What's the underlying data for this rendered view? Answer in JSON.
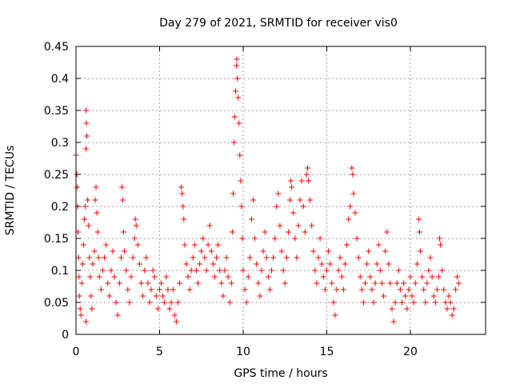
{
  "chart_data": {
    "type": "scatter",
    "title": "Day 279 of 2021, SRMTID for receiver vis0",
    "xlabel": "GPS time / hours",
    "ylabel": "SRMTID / TECUs",
    "xlim": [
      0,
      24.5
    ],
    "ylim": [
      0,
      0.45
    ],
    "grid": true,
    "marker": "+",
    "color": "#ff0000",
    "xticks": [
      {
        "value": 0,
        "label": "0"
      },
      {
        "value": 5,
        "label": "5"
      },
      {
        "value": 10,
        "label": "10"
      },
      {
        "value": 15,
        "label": "15"
      },
      {
        "value": 20,
        "label": "20"
      }
    ],
    "yticks": [
      {
        "value": 0,
        "label": "0"
      },
      {
        "value": 0.05,
        "label": "0.05"
      },
      {
        "value": 0.1,
        "label": "0.1"
      },
      {
        "value": 0.15,
        "label": "0.15"
      },
      {
        "value": 0.2,
        "label": "0.2"
      },
      {
        "value": 0.25,
        "label": "0.25"
      },
      {
        "value": 0.3,
        "label": "0.3"
      },
      {
        "value": 0.35,
        "label": "0.35"
      },
      {
        "value": 0.4,
        "label": "0.4"
      },
      {
        "value": 0.45,
        "label": "0.45"
      }
    ],
    "series": [
      {
        "name": "vis0",
        "points": [
          [
            0.0,
            0.28
          ],
          [
            0.05,
            0.25
          ],
          [
            0.08,
            0.23
          ],
          [
            0.1,
            0.2
          ],
          [
            0.12,
            0.16
          ],
          [
            0.15,
            0.12
          ],
          [
            0.18,
            0.09
          ],
          [
            0.2,
            0.06
          ],
          [
            0.25,
            0.04
          ],
          [
            0.3,
            0.03
          ],
          [
            0.35,
            0.08
          ],
          [
            0.4,
            0.11
          ],
          [
            0.45,
            0.14
          ],
          [
            0.5,
            0.18
          ],
          [
            0.55,
            0.2
          ],
          [
            0.6,
            0.35
          ],
          [
            0.62,
            0.33
          ],
          [
            0.65,
            0.31
          ],
          [
            0.6,
            0.29
          ],
          [
            0.7,
            0.21
          ],
          [
            0.75,
            0.17
          ],
          [
            0.8,
            0.12
          ],
          [
            0.85,
            0.09
          ],
          [
            0.9,
            0.06
          ],
          [
            0.95,
            0.04
          ],
          [
            0.6,
            0.02
          ],
          [
            1.0,
            0.11
          ],
          [
            1.1,
            0.13
          ],
          [
            1.15,
            0.21
          ],
          [
            1.2,
            0.23
          ],
          [
            1.25,
            0.19
          ],
          [
            1.3,
            0.16
          ],
          [
            1.35,
            0.12
          ],
          [
            1.4,
            0.09
          ],
          [
            1.5,
            0.07
          ],
          [
            1.6,
            0.1
          ],
          [
            1.7,
            0.12
          ],
          [
            1.8,
            0.14
          ],
          [
            1.9,
            0.08
          ],
          [
            2.0,
            0.06
          ],
          [
            2.1,
            0.1
          ],
          [
            2.2,
            0.13
          ],
          [
            2.3,
            0.09
          ],
          [
            2.4,
            0.05
          ],
          [
            2.5,
            0.03
          ],
          [
            2.6,
            0.08
          ],
          [
            2.7,
            0.12
          ],
          [
            2.75,
            0.23
          ],
          [
            2.8,
            0.21
          ],
          [
            2.85,
            0.16
          ],
          [
            2.9,
            0.13
          ],
          [
            3.0,
            0.1
          ],
          [
            3.1,
            0.07
          ],
          [
            3.2,
            0.05
          ],
          [
            3.3,
            0.09
          ],
          [
            3.4,
            0.12
          ],
          [
            3.5,
            0.15
          ],
          [
            3.55,
            0.18
          ],
          [
            3.6,
            0.17
          ],
          [
            3.7,
            0.14
          ],
          [
            3.8,
            0.11
          ],
          [
            3.9,
            0.08
          ],
          [
            4.0,
            0.06
          ],
          [
            4.1,
            0.1
          ],
          [
            4.2,
            0.12
          ],
          [
            4.3,
            0.08
          ],
          [
            4.4,
            0.05
          ],
          [
            4.5,
            0.07
          ],
          [
            4.6,
            0.1
          ],
          [
            4.7,
            0.09
          ],
          [
            4.8,
            0.06
          ],
          [
            4.9,
            0.04
          ],
          [
            5.0,
            0.07
          ],
          [
            5.1,
            0.08
          ],
          [
            5.2,
            0.06
          ],
          [
            5.3,
            0.05
          ],
          [
            5.4,
            0.09
          ],
          [
            5.5,
            0.07
          ],
          [
            5.6,
            0.04
          ],
          [
            5.7,
            0.05
          ],
          [
            5.8,
            0.07
          ],
          [
            5.9,
            0.03
          ],
          [
            6.0,
            0.02
          ],
          [
            6.1,
            0.05
          ],
          [
            6.2,
            0.08
          ],
          [
            6.3,
            0.23
          ],
          [
            6.35,
            0.22
          ],
          [
            6.4,
            0.2
          ],
          [
            6.45,
            0.18
          ],
          [
            6.5,
            0.14
          ],
          [
            6.6,
            0.11
          ],
          [
            6.7,
            0.09
          ],
          [
            6.8,
            0.07
          ],
          [
            6.9,
            0.1
          ],
          [
            7.0,
            0.12
          ],
          [
            7.1,
            0.14
          ],
          [
            7.2,
            0.1
          ],
          [
            7.3,
            0.08
          ],
          [
            7.4,
            0.11
          ],
          [
            7.5,
            0.13
          ],
          [
            7.6,
            0.15
          ],
          [
            7.7,
            0.12
          ],
          [
            7.8,
            0.1
          ],
          [
            7.9,
            0.14
          ],
          [
            8.0,
            0.17
          ],
          [
            8.1,
            0.13
          ],
          [
            8.2,
            0.11
          ],
          [
            8.3,
            0.09
          ],
          [
            8.4,
            0.12
          ],
          [
            8.5,
            0.14
          ],
          [
            8.6,
            0.1
          ],
          [
            8.7,
            0.08
          ],
          [
            8.8,
            0.06
          ],
          [
            8.9,
            0.1
          ],
          [
            9.0,
            0.12
          ],
          [
            9.1,
            0.09
          ],
          [
            9.2,
            0.05
          ],
          [
            9.3,
            0.08
          ],
          [
            9.35,
            0.16
          ],
          [
            9.4,
            0.22
          ],
          [
            9.45,
            0.3
          ],
          [
            9.5,
            0.34
          ],
          [
            9.55,
            0.38
          ],
          [
            9.6,
            0.42
          ],
          [
            9.62,
            0.43
          ],
          [
            9.65,
            0.4
          ],
          [
            9.7,
            0.37
          ],
          [
            9.75,
            0.33
          ],
          [
            9.8,
            0.28
          ],
          [
            9.85,
            0.24
          ],
          [
            9.9,
            0.2
          ],
          [
            9.95,
            0.15
          ],
          [
            10.0,
            0.1
          ],
          [
            10.1,
            0.07
          ],
          [
            10.2,
            0.05
          ],
          [
            10.3,
            0.09
          ],
          [
            10.4,
            0.12
          ],
          [
            10.5,
            0.18
          ],
          [
            10.6,
            0.21
          ],
          [
            10.7,
            0.15
          ],
          [
            10.8,
            0.11
          ],
          [
            10.9,
            0.08
          ],
          [
            11.0,
            0.06
          ],
          [
            11.1,
            0.1
          ],
          [
            11.2,
            0.13
          ],
          [
            11.3,
            0.16
          ],
          [
            11.4,
            0.12
          ],
          [
            11.5,
            0.09
          ],
          [
            11.6,
            0.07
          ],
          [
            11.7,
            0.1
          ],
          [
            11.8,
            0.12
          ],
          [
            11.9,
            0.15
          ],
          [
            12.0,
            0.2
          ],
          [
            12.1,
            0.22
          ],
          [
            12.2,
            0.17
          ],
          [
            12.3,
            0.13
          ],
          [
            12.4,
            0.1
          ],
          [
            12.5,
            0.08
          ],
          [
            12.6,
            0.12
          ],
          [
            12.7,
            0.16
          ],
          [
            12.8,
            0.21
          ],
          [
            12.85,
            0.24
          ],
          [
            12.9,
            0.23
          ],
          [
            13.0,
            0.19
          ],
          [
            13.1,
            0.15
          ],
          [
            13.2,
            0.12
          ],
          [
            13.3,
            0.17
          ],
          [
            13.4,
            0.21
          ],
          [
            13.5,
            0.24
          ],
          [
            13.6,
            0.2
          ],
          [
            13.7,
            0.16
          ],
          [
            13.8,
            0.25
          ],
          [
            13.85,
            0.26
          ],
          [
            13.9,
            0.24
          ],
          [
            14.0,
            0.21
          ],
          [
            14.1,
            0.17
          ],
          [
            14.2,
            0.13
          ],
          [
            14.3,
            0.1
          ],
          [
            14.4,
            0.08
          ],
          [
            14.5,
            0.12
          ],
          [
            14.6,
            0.15
          ],
          [
            14.7,
            0.11
          ],
          [
            14.8,
            0.09
          ],
          [
            14.9,
            0.07
          ],
          [
            15.0,
            0.1
          ],
          [
            15.1,
            0.13
          ],
          [
            15.2,
            0.11
          ],
          [
            15.3,
            0.08
          ],
          [
            15.4,
            0.05
          ],
          [
            15.5,
            0.03
          ],
          [
            15.6,
            0.07
          ],
          [
            15.7,
            0.1
          ],
          [
            15.8,
            0.12
          ],
          [
            15.9,
            0.09
          ],
          [
            16.0,
            0.07
          ],
          [
            16.1,
            0.11
          ],
          [
            16.2,
            0.14
          ],
          [
            16.3,
            0.18
          ],
          [
            16.4,
            0.2
          ],
          [
            16.5,
            0.26
          ],
          [
            16.55,
            0.25
          ],
          [
            16.6,
            0.22
          ],
          [
            16.7,
            0.19
          ],
          [
            16.8,
            0.15
          ],
          [
            16.9,
            0.12
          ],
          [
            17.0,
            0.09
          ],
          [
            17.1,
            0.07
          ],
          [
            17.2,
            0.05
          ],
          [
            17.3,
            0.08
          ],
          [
            17.4,
            0.11
          ],
          [
            17.5,
            0.13
          ],
          [
            17.6,
            0.09
          ],
          [
            17.7,
            0.07
          ],
          [
            17.8,
            0.05
          ],
          [
            17.9,
            0.08
          ],
          [
            18.0,
            0.11
          ],
          [
            18.1,
            0.14
          ],
          [
            18.2,
            0.1
          ],
          [
            18.3,
            0.08
          ],
          [
            18.4,
            0.06
          ],
          [
            18.5,
            0.13
          ],
          [
            18.6,
            0.16
          ],
          [
            18.7,
            0.11
          ],
          [
            18.8,
            0.08
          ],
          [
            18.9,
            0.04
          ],
          [
            19.0,
            0.02
          ],
          [
            19.1,
            0.05
          ],
          [
            19.2,
            0.08
          ],
          [
            19.3,
            0.1
          ],
          [
            19.4,
            0.07
          ],
          [
            19.5,
            0.05
          ],
          [
            19.6,
            0.08
          ],
          [
            19.7,
            0.06
          ],
          [
            19.8,
            0.04
          ],
          [
            19.9,
            0.07
          ],
          [
            20.0,
            0.09
          ],
          [
            20.1,
            0.06
          ],
          [
            20.2,
            0.05
          ],
          [
            20.3,
            0.08
          ],
          [
            20.4,
            0.11
          ],
          [
            20.5,
            0.18
          ],
          [
            20.55,
            0.16
          ],
          [
            20.6,
            0.13
          ],
          [
            20.7,
            0.09
          ],
          [
            20.8,
            0.07
          ],
          [
            20.9,
            0.05
          ],
          [
            21.0,
            0.08
          ],
          [
            21.1,
            0.1
          ],
          [
            21.2,
            0.12
          ],
          [
            21.3,
            0.09
          ],
          [
            21.4,
            0.06
          ],
          [
            21.5,
            0.05
          ],
          [
            21.6,
            0.07
          ],
          [
            21.7,
            0.09
          ],
          [
            21.75,
            0.15
          ],
          [
            21.8,
            0.14
          ],
          [
            21.9,
            0.1
          ],
          [
            22.0,
            0.07
          ],
          [
            22.1,
            0.05
          ],
          [
            22.2,
            0.04
          ],
          [
            22.3,
            0.06
          ],
          [
            22.4,
            0.05
          ],
          [
            22.5,
            0.03
          ],
          [
            22.6,
            0.04
          ],
          [
            22.7,
            0.07
          ],
          [
            22.8,
            0.09
          ],
          [
            22.9,
            0.08
          ]
        ]
      }
    ]
  }
}
